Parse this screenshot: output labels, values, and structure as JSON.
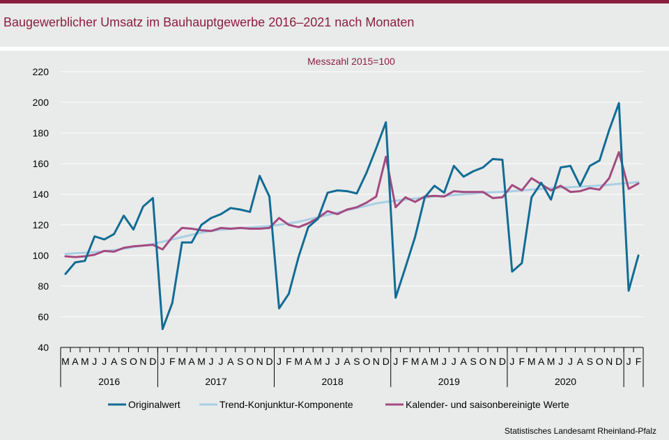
{
  "title": "Baugewerblicher Umsatz im Bauhauptgewerbe 2016–2021 nach Monaten",
  "source": "Statistisches Landesamt Rheinland-Pfalz",
  "colors": {
    "brand": "#8b1e3f",
    "original": "#106c94",
    "trend": "#a9cfe3",
    "adjusted": "#a34a80"
  },
  "chart_data": {
    "type": "line",
    "subtitle": "Messzahl 2015=100",
    "ylim": [
      40,
      220
    ],
    "yticks": [
      40,
      60,
      80,
      100,
      120,
      140,
      160,
      180,
      200,
      220
    ],
    "grid": true,
    "legend": "bottom",
    "x": [
      "M",
      "A",
      "M",
      "J",
      "J",
      "A",
      "S",
      "O",
      "N",
      "D",
      "J",
      "F",
      "M",
      "A",
      "M",
      "J",
      "J",
      "A",
      "S",
      "O",
      "N",
      "D",
      "J",
      "F",
      "M",
      "A",
      "M",
      "J",
      "J",
      "A",
      "S",
      "O",
      "N",
      "D",
      "J",
      "F",
      "M",
      "A",
      "M",
      "J",
      "J",
      "A",
      "S",
      "O",
      "N",
      "D",
      "J",
      "F",
      "M",
      "A",
      "M",
      "J",
      "J",
      "A",
      "S",
      "O",
      "N",
      "D",
      "J",
      "F"
    ],
    "years": [
      {
        "label": "2016",
        "start": 0,
        "end": 10
      },
      {
        "label": "2017",
        "start": 10,
        "end": 22
      },
      {
        "label": "2018",
        "start": 22,
        "end": 34
      },
      {
        "label": "2019",
        "start": 34,
        "end": 46
      },
      {
        "label": "2020",
        "start": 46,
        "end": 58
      }
    ],
    "series": [
      {
        "name": "Originalwert",
        "color": "#106c94",
        "values": [
          88,
          95.5,
          96.5,
          112.5,
          110.5,
          114,
          126,
          117,
          132,
          137.5,
          52,
          69,
          108.5,
          108.5,
          120,
          124.5,
          127,
          131,
          130,
          128.5,
          152,
          138.5,
          65.5,
          75,
          99,
          118.5,
          124,
          141,
          142.5,
          142,
          140.5,
          154,
          170,
          187,
          72.5,
          92,
          112,
          138,
          145.5,
          141,
          158.5,
          151.5,
          155,
          157.5,
          163,
          162.5,
          89.5,
          95,
          138,
          147.5,
          136.5,
          157.5,
          158.5,
          145.5,
          158.5,
          162,
          182,
          199.5,
          77,
          100
        ]
      },
      {
        "name": "Trend-Konjunktur-Komponente",
        "color": "#a9cfe3",
        "values": [
          101,
          101.5,
          101.8,
          102.2,
          102.8,
          103.5,
          104.5,
          105.5,
          106.5,
          107.5,
          109,
          110.5,
          112,
          113.5,
          115,
          116,
          116.8,
          117.3,
          117.8,
          118.3,
          118.8,
          119.3,
          120,
          121,
          122,
          123.5,
          125,
          126.5,
          128,
          129.5,
          131,
          132.5,
          134,
          135,
          135.8,
          136.5,
          137.2,
          137.8,
          138.5,
          139,
          139.5,
          140,
          140.5,
          141,
          141.3,
          141.6,
          142,
          142.5,
          143,
          143.5,
          144,
          144.3,
          144.6,
          145,
          145.3,
          145.7,
          146.2,
          146.8,
          147.3,
          148
        ]
      },
      {
        "name": "Kalender- und saisonbereinigte Werte",
        "color": "#a34a80",
        "values": [
          99.5,
          99,
          99.5,
          100.5,
          103,
          102.5,
          105,
          106,
          106.5,
          107,
          104,
          112,
          118,
          117.5,
          116.5,
          116,
          118,
          117.5,
          118,
          117.5,
          117.5,
          118,
          124.5,
          120,
          118.5,
          121,
          124.5,
          129,
          127,
          130,
          131.5,
          134.5,
          138.5,
          164.5,
          131.5,
          138,
          135,
          138.5,
          139,
          138.5,
          142,
          141.5,
          141.5,
          141.5,
          137.5,
          138,
          146,
          142.5,
          150.5,
          146.5,
          142.5,
          145.5,
          141.5,
          142,
          144,
          143,
          150.5,
          167.5,
          143.5,
          147
        ]
      }
    ]
  }
}
